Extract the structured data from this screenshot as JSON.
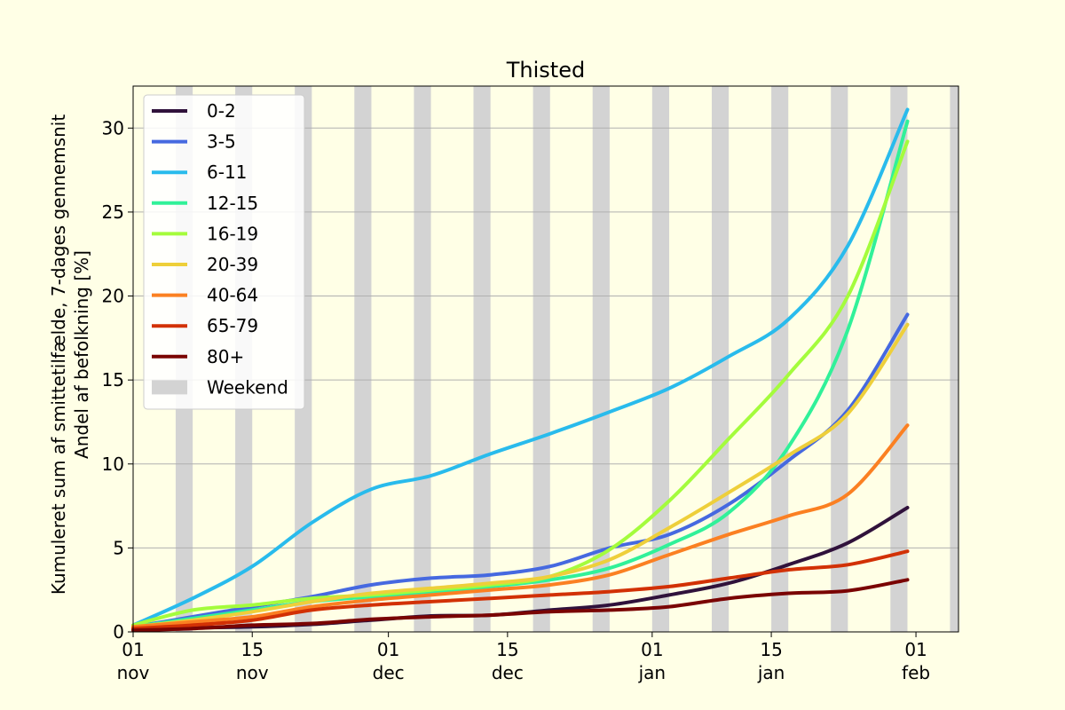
{
  "chart_data": {
    "type": "line",
    "title": "Thisted",
    "ylabel_lines": [
      "Kumuleret sum af smittetilfælde, 7-dages gennemsnit",
      "Andel af befolkning [%]"
    ],
    "xlabel": "",
    "x_axis_kind": "date",
    "xlim": [
      "2021-11-01",
      "2022-02-06"
    ],
    "ylim": [
      0,
      32.5
    ],
    "yticks": [
      0,
      5,
      10,
      15,
      20,
      25,
      30
    ],
    "xticks": [
      {
        "date": "2021-11-01",
        "day": "01",
        "month": "nov"
      },
      {
        "date": "2021-11-15",
        "day": "15",
        "month": "nov"
      },
      {
        "date": "2021-12-01",
        "day": "01",
        "month": "dec"
      },
      {
        "date": "2021-12-15",
        "day": "15",
        "month": "dec"
      },
      {
        "date": "2022-01-01",
        "day": "01",
        "month": "jan"
      },
      {
        "date": "2022-01-15",
        "day": "15",
        "month": "jan"
      },
      {
        "date": "2022-02-01",
        "day": "01",
        "month": "feb"
      }
    ],
    "grid": "y",
    "legend_position": "top-left",
    "weekend_label": "Weekend",
    "weekend_color": "#d3d3d3",
    "weekends": [
      [
        "2021-11-06",
        "2021-11-07"
      ],
      [
        "2021-11-13",
        "2021-11-14"
      ],
      [
        "2021-11-20",
        "2021-11-21"
      ],
      [
        "2021-11-27",
        "2021-11-28"
      ],
      [
        "2021-12-04",
        "2021-12-05"
      ],
      [
        "2021-12-11",
        "2021-12-12"
      ],
      [
        "2021-12-18",
        "2021-12-19"
      ],
      [
        "2021-12-25",
        "2021-12-26"
      ],
      [
        "2022-01-01",
        "2022-01-02"
      ],
      [
        "2022-01-08",
        "2022-01-09"
      ],
      [
        "2022-01-15",
        "2022-01-16"
      ],
      [
        "2022-01-22",
        "2022-01-23"
      ],
      [
        "2022-01-29",
        "2022-01-30"
      ],
      [
        "2022-02-05",
        "2022-02-06"
      ]
    ],
    "x": [
      "2021-11-01",
      "2021-11-08",
      "2021-11-15",
      "2021-11-22",
      "2021-11-29",
      "2021-12-06",
      "2021-12-13",
      "2021-12-20",
      "2021-12-27",
      "2022-01-03",
      "2022-01-10",
      "2022-01-17",
      "2022-01-24",
      "2022-01-31"
    ],
    "series": [
      {
        "name": "0-2",
        "color": "#30123b",
        "values": [
          0.2,
          0.25,
          0.3,
          0.45,
          0.7,
          0.95,
          1.0,
          1.3,
          1.6,
          2.2,
          2.9,
          4.0,
          5.3,
          7.4
        ]
      },
      {
        "name": "3-5",
        "color": "#4669e0",
        "values": [
          0.3,
          0.9,
          1.5,
          2.1,
          2.8,
          3.2,
          3.4,
          3.9,
          5.0,
          5.8,
          7.6,
          10.2,
          13.2,
          18.9
        ]
      },
      {
        "name": "6-11",
        "color": "#29bbec",
        "values": [
          0.4,
          2.0,
          3.9,
          6.5,
          8.5,
          9.3,
          10.6,
          11.8,
          13.1,
          14.5,
          16.4,
          18.6,
          23.0,
          31.1
        ]
      },
      {
        "name": "12-15",
        "color": "#31f199",
        "values": [
          0.3,
          0.8,
          1.3,
          1.8,
          2.1,
          2.4,
          2.7,
          3.1,
          3.8,
          5.2,
          7.1,
          11.0,
          18.0,
          30.4
        ]
      },
      {
        "name": "16-19",
        "color": "#a4fc3c",
        "values": [
          0.4,
          1.3,
          1.6,
          2.0,
          2.2,
          2.5,
          2.8,
          3.3,
          4.9,
          7.8,
          11.5,
          15.3,
          20.0,
          29.2
        ]
      },
      {
        "name": "20-39",
        "color": "#eecf3a",
        "values": [
          0.3,
          0.7,
          1.2,
          1.8,
          2.3,
          2.6,
          2.9,
          3.3,
          4.3,
          6.2,
          8.3,
          10.5,
          13.0,
          18.3
        ]
      },
      {
        "name": "40-64",
        "color": "#fb8022",
        "values": [
          0.3,
          0.6,
          0.9,
          1.5,
          1.9,
          2.2,
          2.5,
          2.8,
          3.4,
          4.6,
          5.8,
          6.9,
          8.2,
          12.3
        ]
      },
      {
        "name": "65-79",
        "color": "#d23105",
        "values": [
          0.2,
          0.4,
          0.7,
          1.3,
          1.6,
          1.8,
          2.0,
          2.2,
          2.4,
          2.7,
          3.2,
          3.7,
          4.0,
          4.8
        ]
      },
      {
        "name": "80+",
        "color": "#7a0403",
        "values": [
          0.1,
          0.2,
          0.4,
          0.5,
          0.75,
          0.9,
          1.0,
          1.2,
          1.3,
          1.5,
          2.0,
          2.3,
          2.45,
          3.1
        ]
      }
    ]
  }
}
